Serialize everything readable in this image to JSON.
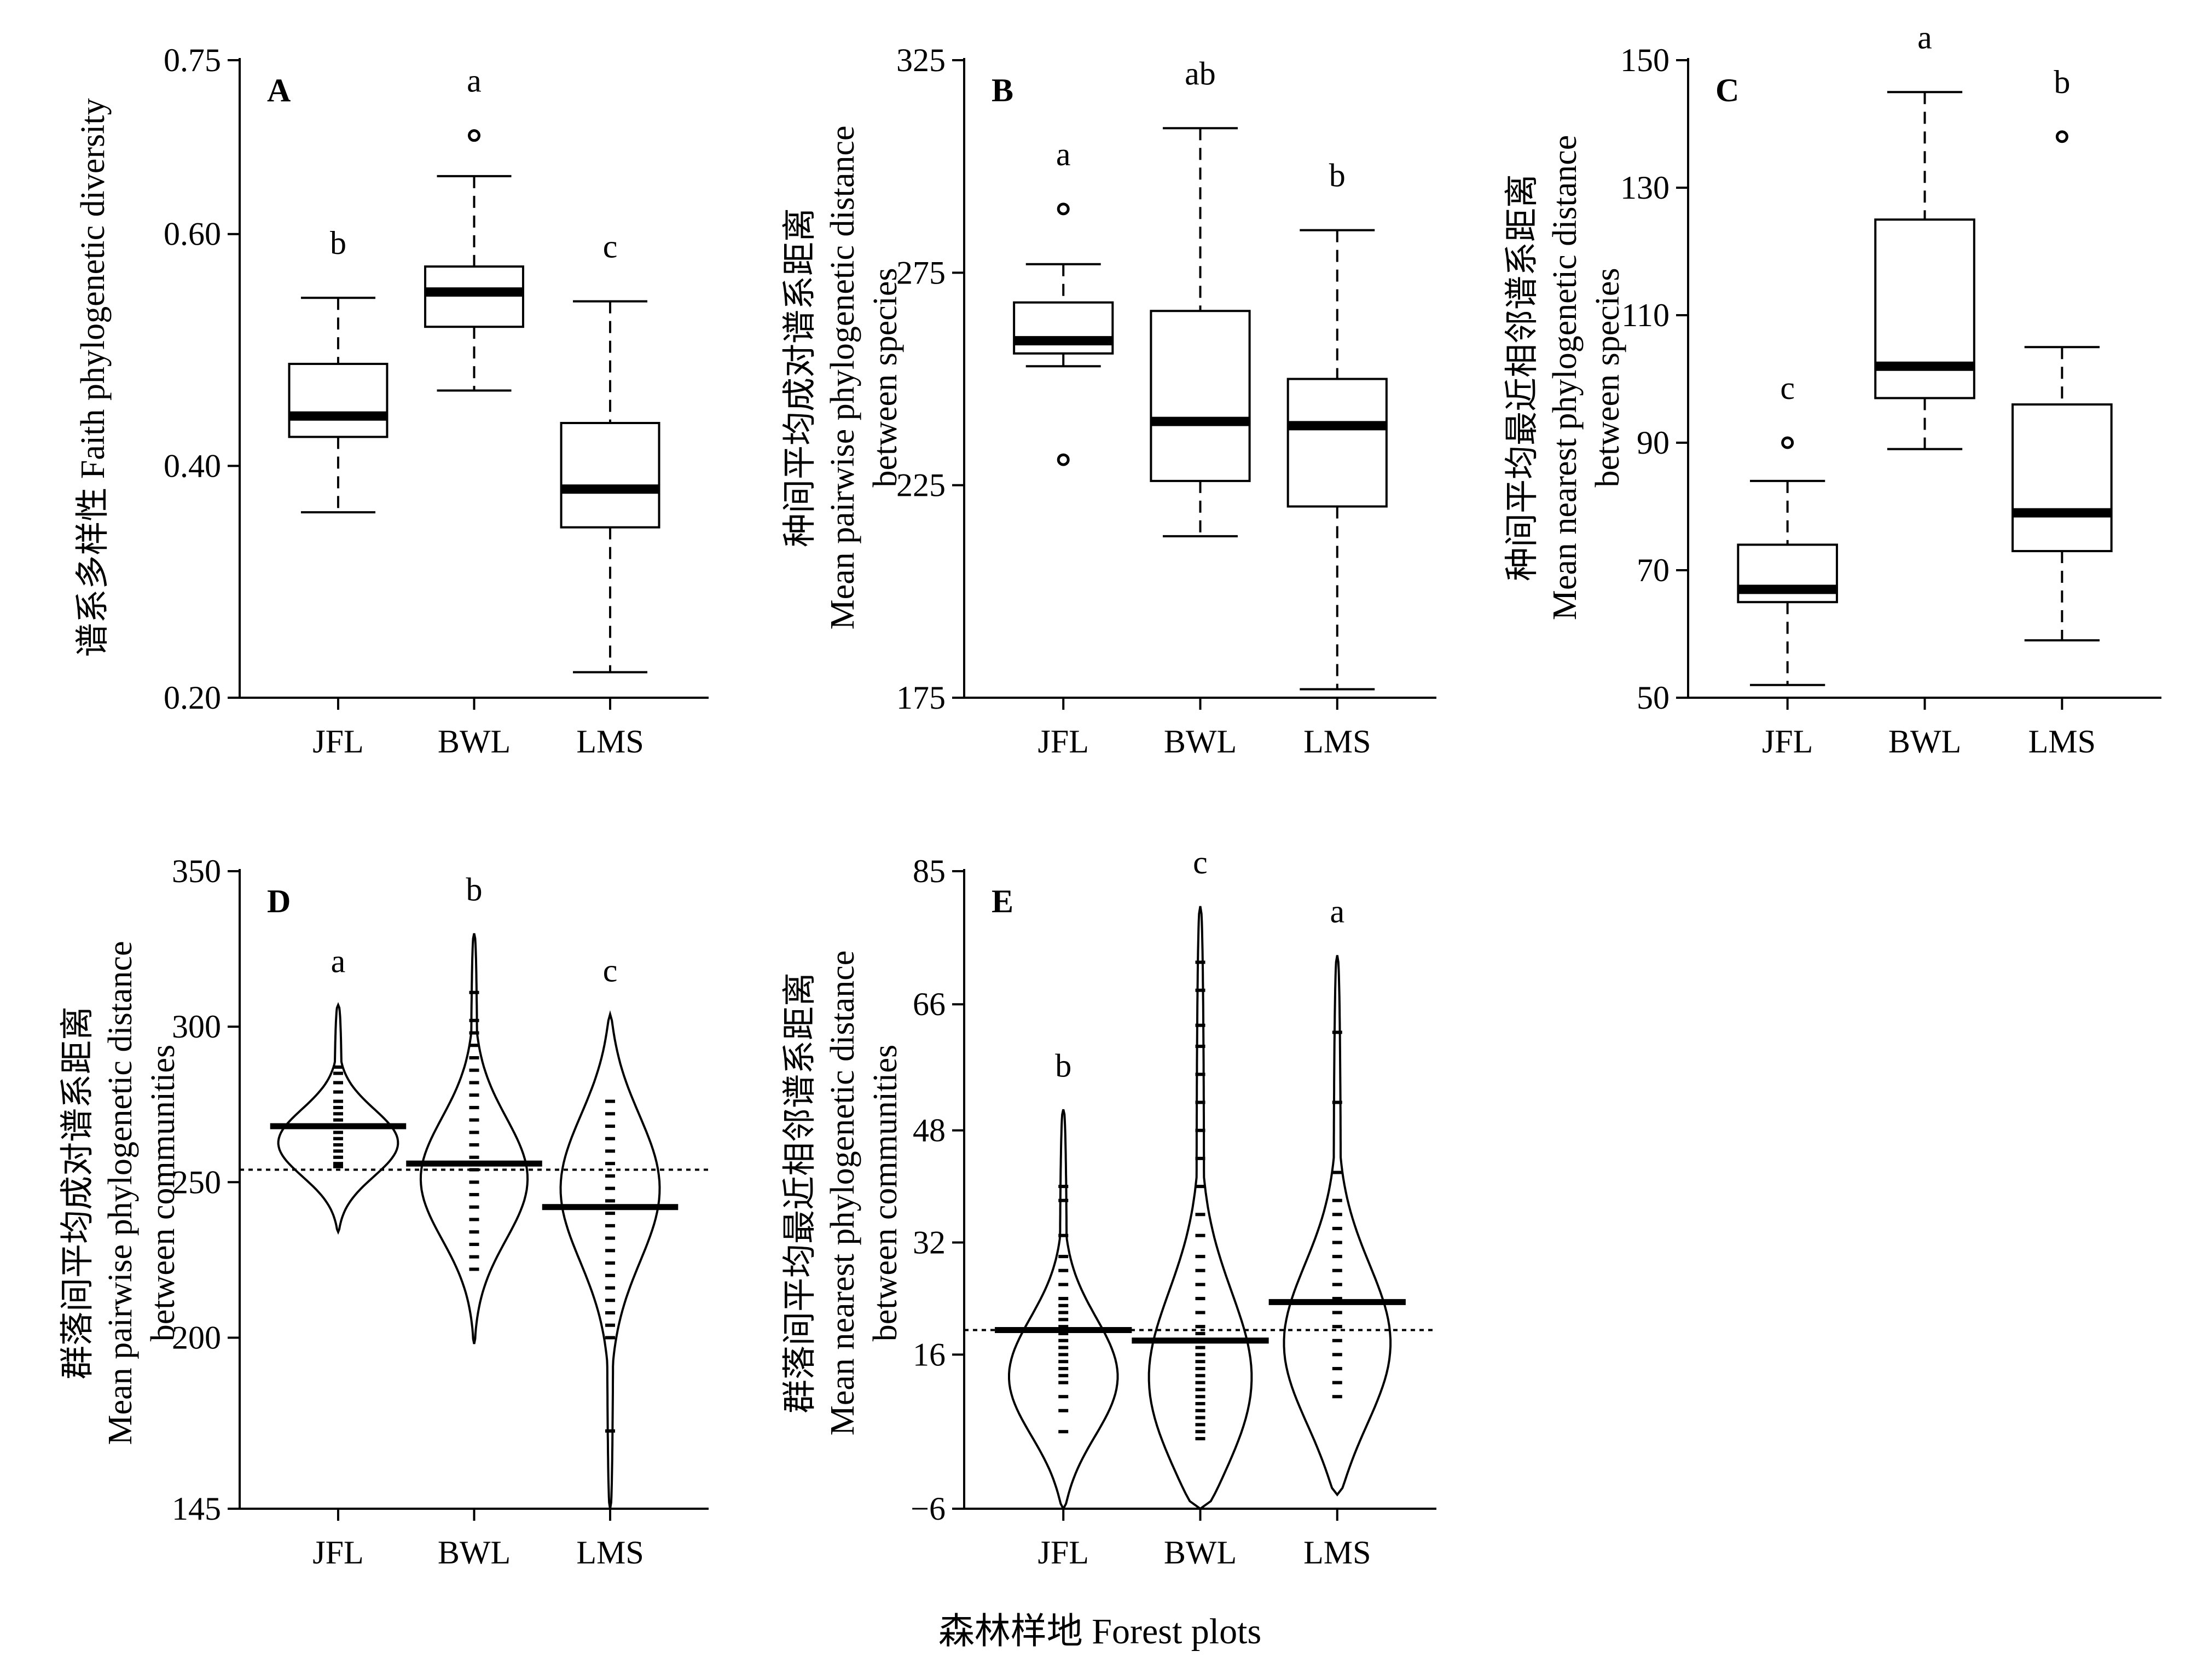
{
  "figure": {
    "xlabel": "森林样地 Forest plots"
  },
  "chart_data": [
    {
      "panel": "A",
      "type": "box",
      "categories": [
        "JFL",
        "BWL",
        "LMS"
      ],
      "ylabel_lines": [
        "谱系多样性 Faith phylogenetic diversity"
      ],
      "ylim": [
        0.2,
        0.75
      ],
      "yticks": [
        "0.20",
        "0.40",
        "0.60",
        "0.75"
      ],
      "ytick_values": [
        0.2,
        0.4,
        0.6,
        0.75
      ],
      "boxes": [
        {
          "min": 0.36,
          "q1": 0.425,
          "median": 0.443,
          "q3": 0.488,
          "max": 0.545,
          "outliers": [],
          "letter": "b"
        },
        {
          "min": 0.465,
          "q1": 0.52,
          "median": 0.55,
          "q3": 0.572,
          "max": 0.65,
          "outliers": [
            0.685
          ],
          "letter": "a"
        },
        {
          "min": 0.222,
          "q1": 0.347,
          "median": 0.38,
          "q3": 0.437,
          "max": 0.542,
          "outliers": [],
          "letter": "c"
        }
      ]
    },
    {
      "panel": "B",
      "type": "box",
      "categories": [
        "JFL",
        "BWL",
        "LMS"
      ],
      "ylabel_lines": [
        "种间平均成对谱系距离",
        "Mean pairwise phylogenetic distance",
        "between species"
      ],
      "ylim": [
        175,
        325
      ],
      "yticks": [
        "175",
        "225",
        "275",
        "325"
      ],
      "ytick_values": [
        175,
        225,
        275,
        325
      ],
      "boxes": [
        {
          "min": 253,
          "q1": 256,
          "median": 259,
          "q3": 268,
          "max": 277,
          "outliers": [
            290,
            231
          ],
          "letter": "a"
        },
        {
          "min": 213,
          "q1": 226,
          "median": 240,
          "q3": 266,
          "max": 309,
          "outliers": [],
          "letter": "ab"
        },
        {
          "min": 177,
          "q1": 220,
          "median": 239,
          "q3": 250,
          "max": 285,
          "outliers": [],
          "letter": "b"
        }
      ]
    },
    {
      "panel": "C",
      "type": "box",
      "categories": [
        "JFL",
        "BWL",
        "LMS"
      ],
      "ylabel_lines": [
        "种间平均最近相邻谱系距离",
        "Mean nearest phylogenetic distance",
        "between species"
      ],
      "ylim": [
        50,
        150
      ],
      "yticks": [
        "50",
        "70",
        "90",
        "110",
        "130",
        "150"
      ],
      "ytick_values": [
        50,
        70,
        90,
        110,
        130,
        150
      ],
      "boxes": [
        {
          "min": 52,
          "q1": 65,
          "median": 67,
          "q3": 74,
          "max": 84,
          "outliers": [
            90
          ],
          "letter": "c"
        },
        {
          "min": 89,
          "q1": 97,
          "median": 102,
          "q3": 125,
          "max": 145,
          "outliers": [],
          "letter": "a"
        },
        {
          "min": 59,
          "q1": 73,
          "median": 79,
          "q3": 96,
          "max": 105,
          "outliers": [
            138
          ],
          "letter": "b"
        }
      ]
    },
    {
      "panel": "D",
      "type": "violin",
      "categories": [
        "JFL",
        "BWL",
        "LMS"
      ],
      "ylabel_lines": [
        "群落间平均成对谱系距离",
        "Mean pairwise phylogenetic distance",
        "between communities"
      ],
      "ylim": [
        145,
        350
      ],
      "yticks": [
        "145",
        "200",
        "250",
        "300",
        "350"
      ],
      "ytick_values": [
        145,
        200,
        250,
        300,
        350
      ],
      "reference_line": 254,
      "violins": [
        {
          "min": 234,
          "max": 307,
          "mean": 268,
          "mode": 262,
          "width": 0.45,
          "points": [
            255,
            256,
            258,
            260,
            262,
            264,
            266,
            268,
            270,
            272,
            274,
            276,
            279,
            282,
            285,
            287
          ],
          "letter": "a"
        },
        {
          "min": 198,
          "max": 330,
          "mean": 256,
          "mode": 250,
          "width": 0.4,
          "points": [
            222,
            226,
            230,
            234,
            238,
            242,
            246,
            250,
            254,
            258,
            262,
            266,
            270,
            274,
            278,
            282,
            286,
            290,
            294,
            298,
            302,
            311
          ],
          "letter": "b"
        },
        {
          "min": 145,
          "max": 304,
          "mean": 242,
          "mode": 250,
          "width": 0.38,
          "points": [
            170,
            200,
            204,
            208,
            212,
            216,
            220,
            224,
            228,
            232,
            236,
            240,
            244,
            248,
            252,
            256,
            260,
            264,
            268,
            272,
            276
          ],
          "letter": "c"
        }
      ]
    },
    {
      "panel": "E",
      "type": "violin",
      "categories": [
        "JFL",
        "BWL",
        "LMS"
      ],
      "ylabel_lines": [
        "群落间平均最近相邻谱系距离",
        "Mean nearest phylogenetic distance",
        "between communities"
      ],
      "ylim": [
        -6,
        85
      ],
      "yticks": [
        "−6",
        "16",
        "32",
        "48",
        "66",
        "85"
      ],
      "ytick_values": [
        -6,
        16,
        32,
        48,
        66,
        85
      ],
      "reference_line": 19.5,
      "violins": [
        {
          "min": -6,
          "max": 51,
          "mean": 19.5,
          "mode": 12,
          "width": 0.42,
          "points": [
            5,
            8,
            10,
            12,
            13,
            14,
            15,
            16,
            17,
            18,
            19,
            20,
            21,
            22,
            23,
            24,
            26,
            28,
            30,
            33,
            38,
            40
          ],
          "letter": "b"
        },
        {
          "min": -6,
          "max": 80,
          "mean": 18,
          "mode": 10,
          "width": 0.45,
          "points": [
            4,
            5,
            6,
            7,
            8,
            9,
            10,
            11,
            12,
            13,
            14,
            15,
            16,
            17,
            18,
            19,
            20,
            22,
            24,
            26,
            28,
            30,
            33,
            36,
            40,
            44,
            48,
            52,
            56,
            60,
            63,
            68,
            72
          ],
          "letter": "c"
        },
        {
          "min": -4,
          "max": 73,
          "mean": 23.5,
          "mode": 16,
          "width": 0.43,
          "points": [
            10,
            12,
            14,
            16,
            18,
            20,
            22,
            24,
            26,
            28,
            30,
            32,
            34,
            36,
            38,
            42,
            52,
            62
          ],
          "letter": "a"
        }
      ]
    }
  ]
}
